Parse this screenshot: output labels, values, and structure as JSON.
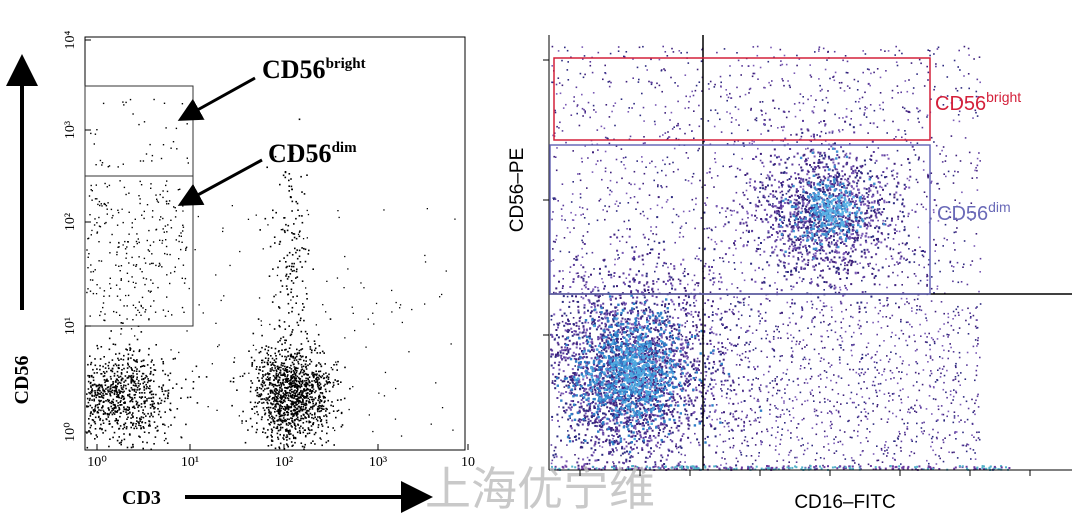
{
  "left_plot": {
    "y_label": "CD56",
    "x_label": "CD3",
    "x_ticks": [
      "10⁰",
      "10¹",
      "10²",
      "10³",
      "10"
    ],
    "y_ticks": [
      "10⁰",
      "10¹",
      "10²",
      "10³",
      "10⁴"
    ],
    "gate_bright": {
      "base": "CD56",
      "sup": "bright"
    },
    "gate_dim": {
      "base": "CD56",
      "sup": "dim"
    }
  },
  "right_plot": {
    "y_label": "CD56–PE",
    "x_label": "CD16–FITC",
    "gate_bright": {
      "base": "CD56",
      "sup": "bright"
    },
    "gate_dim": {
      "base": "CD56",
      "sup": "dim"
    }
  },
  "watermark": "上海优宁维"
}
